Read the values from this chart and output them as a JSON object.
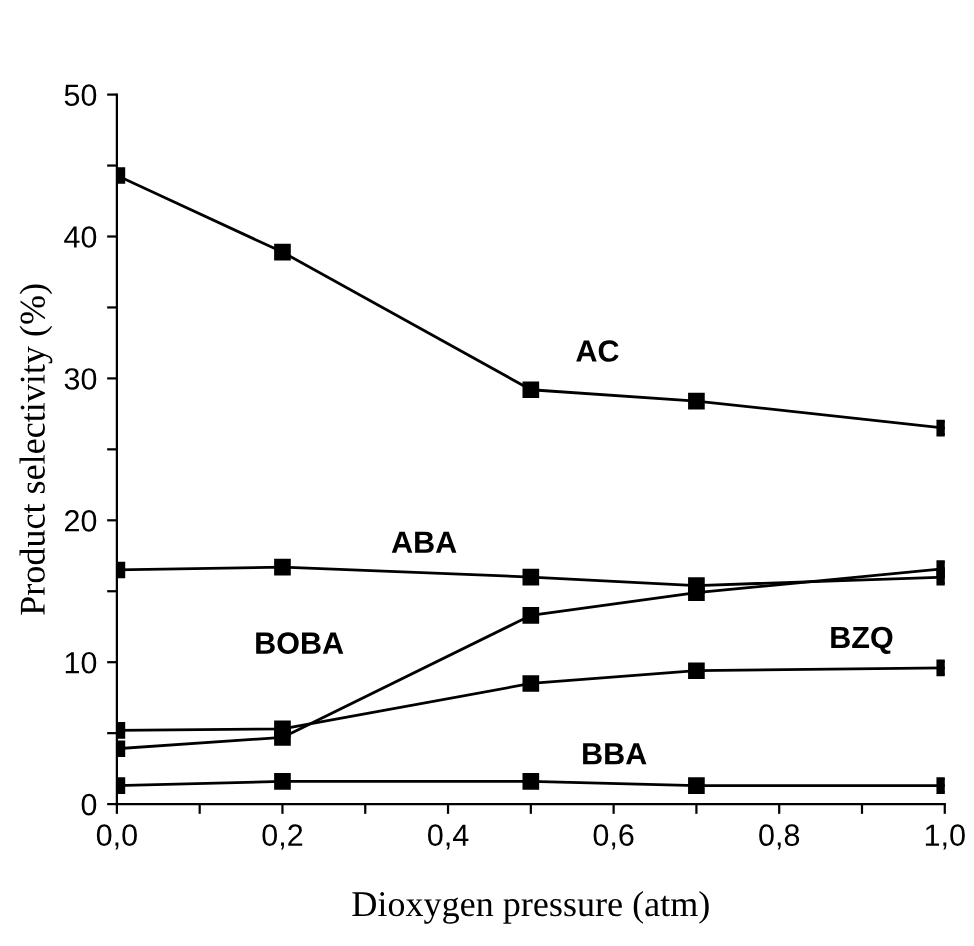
{
  "chart_data": {
    "type": "line",
    "xlabel": "Dioxygen pressure (atm)",
    "ylabel": "Product selectivity (%)",
    "x": [
      0.0,
      0.2,
      0.5,
      0.7,
      1.0
    ],
    "series": [
      {
        "name": "AC",
        "color": "#000000",
        "values": [
          44.3,
          38.9,
          29.2,
          28.4,
          26.5
        ]
      },
      {
        "name": "ABA",
        "color": "#000000",
        "values": [
          16.5,
          16.7,
          16.0,
          15.4,
          16.0
        ]
      },
      {
        "name": "BOBA",
        "color": "#000000",
        "values": [
          3.9,
          4.7,
          13.3,
          14.9,
          16.6
        ]
      },
      {
        "name": "BZQ",
        "color": "#000000",
        "values": [
          5.2,
          5.3,
          8.5,
          9.4,
          9.6
        ]
      },
      {
        "name": "BBA",
        "color": "#000000",
        "values": [
          1.3,
          1.6,
          1.6,
          1.3,
          1.3
        ]
      }
    ],
    "xlim": [
      0.0,
      1.0
    ],
    "ylim": [
      0,
      50
    ],
    "xticks": [
      {
        "value": 0.0,
        "label": "0,0"
      },
      {
        "value": 0.1,
        "label": null
      },
      {
        "value": 0.2,
        "label": "0,2"
      },
      {
        "value": 0.3,
        "label": null
      },
      {
        "value": 0.4,
        "label": "0,4"
      },
      {
        "value": 0.5,
        "label": null
      },
      {
        "value": 0.6,
        "label": "0,6"
      },
      {
        "value": 0.7,
        "label": null
      },
      {
        "value": 0.8,
        "label": "0,8"
      },
      {
        "value": 0.9,
        "label": null
      },
      {
        "value": 1.0,
        "label": "1,0"
      }
    ],
    "yticks": [
      0,
      {
        "value": 5,
        "label": null
      },
      10,
      {
        "value": 15,
        "label": null
      },
      20,
      {
        "value": 25,
        "label": null
      },
      30,
      {
        "value": 35,
        "label": null
      },
      40,
      {
        "value": 45,
        "label": null
      },
      50
    ],
    "grid": false,
    "legend": false,
    "marker": "square",
    "line_style": "solid"
  }
}
